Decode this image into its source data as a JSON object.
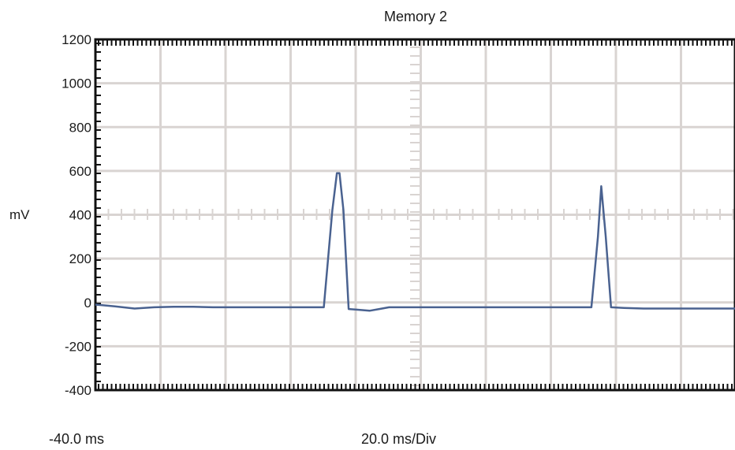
{
  "chart_data": {
    "type": "line",
    "title": "Memory 2",
    "ylabel": "mV",
    "ylim": [
      -400,
      1200
    ],
    "yticks": [
      1200,
      1000,
      800,
      600,
      400,
      200,
      0,
      -200,
      -400
    ],
    "x_start_label": "-40.0 ms",
    "x_scale_label": "20.0 ms/Div",
    "xlim": [
      -40,
      156
    ],
    "x_divisions": 10,
    "grid": true,
    "series": [
      {
        "color": "#4a6290",
        "x": [
          -40,
          -34,
          -28,
          -22,
          -16,
          -10,
          -4,
          2,
          8,
          14,
          20,
          26,
          30,
          32.6,
          34,
          34.8,
          36,
          37.6,
          40,
          44,
          47,
          50,
          56,
          62,
          68,
          74,
          80,
          86,
          92,
          98,
          104,
          108,
          112,
          114,
          115,
          116.4,
          118,
          122,
          128,
          134,
          140,
          146,
          152,
          156
        ],
        "y": [
          -10,
          -18,
          -28,
          -22,
          -20,
          -20,
          -22,
          -22,
          -22,
          -22,
          -22,
          -22,
          -22,
          420,
          590,
          590,
          420,
          -30,
          -33,
          -38,
          -30,
          -22,
          -22,
          -22,
          -22,
          -22,
          -22,
          -22,
          -22,
          -22,
          -22,
          -22,
          -22,
          300,
          530,
          300,
          -22,
          -25,
          -28,
          -28,
          -28,
          -28,
          -28,
          -28
        ]
      }
    ]
  }
}
